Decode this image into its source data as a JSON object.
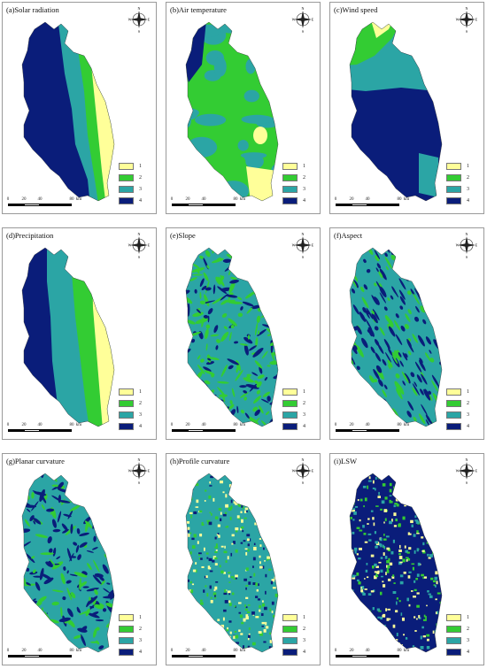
{
  "colors": {
    "c1": "#ffff99",
    "c2": "#33cc33",
    "c3": "#2ba5a5",
    "c4": "#0a1d7a"
  },
  "scale_labels": [
    "0",
    "20",
    "40",
    "80",
    "km"
  ],
  "compass_letters": {
    "n": "N",
    "s": "S",
    "e": "E",
    "w": "W"
  },
  "legend_labels": [
    "1",
    "2",
    "3",
    "4"
  ],
  "panels": [
    {
      "title": "(a)Solar radiation",
      "pattern": "bands-a"
    },
    {
      "title": "(b)Air temperature",
      "pattern": "blobs-b"
    },
    {
      "title": "(c)Wind speed",
      "pattern": "bands-c"
    },
    {
      "title": "(d)Precipitation",
      "pattern": "bands-d"
    },
    {
      "title": "(e)Slope",
      "pattern": "texture-e"
    },
    {
      "title": "(f)Aspect",
      "pattern": "texture-f"
    },
    {
      "title": "(g)Planar curvature",
      "pattern": "texture-g"
    },
    {
      "title": "(h)Profile curvature",
      "pattern": "noise-h"
    },
    {
      "title": "(i)LSW",
      "pattern": "noise-i"
    }
  ]
}
